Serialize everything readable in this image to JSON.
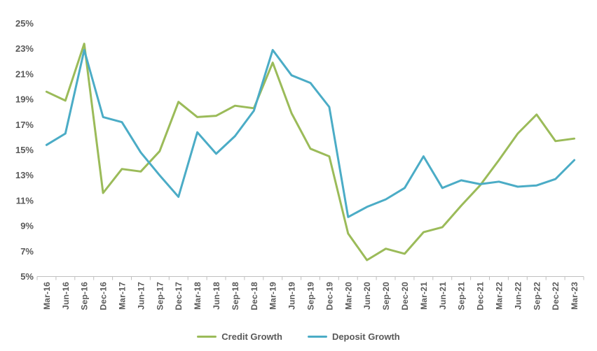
{
  "page": {
    "background": "#ffffff"
  },
  "chart_data": {
    "type": "line",
    "title": "",
    "categories": [
      "Mar-16",
      "Jun-16",
      "Sep-16",
      "Dec-16",
      "Mar-17",
      "Jun-17",
      "Sep-17",
      "Dec-17",
      "Mar-18",
      "Jun-18",
      "Sep-18",
      "Dec-18",
      "Mar-19",
      "Jun-19",
      "Sep-19",
      "Dec-19",
      "Mar-20",
      "Jun-20",
      "Sep-20",
      "Dec-20",
      "Mar-21",
      "Jun-21",
      "Sep-21",
      "Dec-21",
      "Mar-22",
      "Jun-22",
      "Sep-22",
      "Dec-22",
      "Mar-23"
    ],
    "series": [
      {
        "name": "Credit Growth",
        "color": "#9BBB59",
        "values": [
          19.6,
          18.9,
          23.4,
          11.6,
          13.5,
          13.3,
          14.9,
          18.8,
          17.6,
          17.7,
          18.5,
          18.3,
          21.9,
          17.9,
          15.1,
          14.5,
          8.4,
          6.3,
          7.2,
          6.8,
          8.5,
          8.9,
          10.6,
          12.2,
          14.2,
          16.3,
          17.8,
          15.7,
          15.9
        ]
      },
      {
        "name": "Deposit Growth",
        "color": "#4BACC6",
        "values": [
          15.4,
          16.3,
          22.9,
          17.6,
          17.2,
          14.8,
          13.0,
          11.3,
          16.4,
          14.7,
          16.1,
          18.1,
          22.9,
          20.9,
          20.3,
          18.4,
          9.7,
          10.5,
          11.1,
          12.0,
          14.5,
          12.0,
          12.6,
          12.3,
          12.5,
          12.1,
          12.2,
          12.7,
          14.2
        ]
      }
    ],
    "ylim": [
      5,
      25
    ],
    "y_tick_step": 2,
    "y_tick_labels": [
      "5%",
      "7%",
      "9%",
      "11%",
      "13%",
      "15%",
      "17%",
      "19%",
      "21%",
      "23%",
      "25%"
    ],
    "x_label_rotation": -90,
    "grid": false,
    "legend_position": "bottom",
    "axis_color": "#BFBFBF",
    "label_color": "#595959",
    "line_width": 3
  }
}
